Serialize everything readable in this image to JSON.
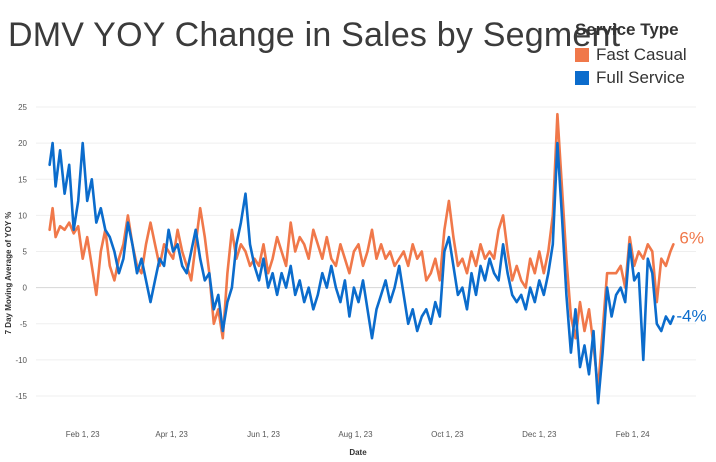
{
  "header": {
    "title": "DMV YOY Change in Sales by Segment"
  },
  "legend": {
    "title": "Service Type",
    "items": [
      {
        "label": "Fast Casual",
        "color": "#f0784a"
      },
      {
        "label": "Full Service",
        "color": "#0b6ccc"
      }
    ]
  },
  "chart_data": {
    "type": "line",
    "title": "DMV YOY Change in Sales by Segment",
    "xlabel": "Date",
    "ylabel": "7 Day Moving Average of YOY %",
    "ylim": [
      -18,
      25
    ],
    "yticks": [
      -15,
      -10,
      -5,
      0,
      5,
      10,
      15,
      20,
      25
    ],
    "xlim": [
      "2023-01-01",
      "2024-03-14"
    ],
    "xticks": [
      {
        "date": "2023-02-01",
        "label": "Feb 1, 23"
      },
      {
        "date": "2023-04-01",
        "label": "Apr 1, 23"
      },
      {
        "date": "2023-06-01",
        "label": "Jun 1, 23"
      },
      {
        "date": "2023-08-01",
        "label": "Aug 1, 23"
      },
      {
        "date": "2023-10-01",
        "label": "Oct 1, 23"
      },
      {
        "date": "2023-12-01",
        "label": "Dec 1, 23"
      },
      {
        "date": "2024-02-01",
        "label": "Feb 1, 24"
      }
    ],
    "grid": "horizontal",
    "legend_position": "top-right",
    "series": [
      {
        "name": "Fast Casual",
        "color": "#f0784a",
        "end_label": "6%",
        "points": [
          [
            "2023-01-10",
            8
          ],
          [
            "2023-01-12",
            11
          ],
          [
            "2023-01-14",
            7
          ],
          [
            "2023-01-17",
            8.5
          ],
          [
            "2023-01-20",
            8
          ],
          [
            "2023-01-23",
            9
          ],
          [
            "2023-01-26",
            7.5
          ],
          [
            "2023-01-29",
            8.5
          ],
          [
            "2023-02-01",
            4
          ],
          [
            "2023-02-04",
            7
          ],
          [
            "2023-02-07",
            3
          ],
          [
            "2023-02-10",
            -1
          ],
          [
            "2023-02-13",
            5
          ],
          [
            "2023-02-16",
            8
          ],
          [
            "2023-02-19",
            3
          ],
          [
            "2023-02-22",
            1
          ],
          [
            "2023-02-25",
            4
          ],
          [
            "2023-02-28",
            6
          ],
          [
            "2023-03-03",
            10
          ],
          [
            "2023-03-06",
            6
          ],
          [
            "2023-03-09",
            3
          ],
          [
            "2023-03-12",
            2
          ],
          [
            "2023-03-15",
            6
          ],
          [
            "2023-03-18",
            9
          ],
          [
            "2023-03-21",
            6
          ],
          [
            "2023-03-24",
            3
          ],
          [
            "2023-03-27",
            6
          ],
          [
            "2023-03-30",
            5
          ],
          [
            "2023-04-02",
            4
          ],
          [
            "2023-04-05",
            8
          ],
          [
            "2023-04-08",
            5
          ],
          [
            "2023-04-11",
            3
          ],
          [
            "2023-04-14",
            1
          ],
          [
            "2023-04-17",
            6
          ],
          [
            "2023-04-20",
            11
          ],
          [
            "2023-04-23",
            7
          ],
          [
            "2023-04-26",
            2
          ],
          [
            "2023-04-29",
            -5
          ],
          [
            "2023-05-02",
            -3
          ],
          [
            "2023-05-05",
            -7
          ],
          [
            "2023-05-08",
            2
          ],
          [
            "2023-05-11",
            8
          ],
          [
            "2023-05-14",
            4
          ],
          [
            "2023-05-17",
            6
          ],
          [
            "2023-05-20",
            5
          ],
          [
            "2023-05-23",
            3
          ],
          [
            "2023-05-26",
            4
          ],
          [
            "2023-05-29",
            3
          ],
          [
            "2023-06-01",
            6
          ],
          [
            "2023-06-04",
            2
          ],
          [
            "2023-06-07",
            4
          ],
          [
            "2023-06-10",
            7
          ],
          [
            "2023-06-13",
            5
          ],
          [
            "2023-06-16",
            3
          ],
          [
            "2023-06-19",
            9
          ],
          [
            "2023-06-22",
            5
          ],
          [
            "2023-06-25",
            7
          ],
          [
            "2023-06-28",
            6
          ],
          [
            "2023-07-01",
            4
          ],
          [
            "2023-07-04",
            8
          ],
          [
            "2023-07-07",
            6
          ],
          [
            "2023-07-10",
            4
          ],
          [
            "2023-07-13",
            7
          ],
          [
            "2023-07-16",
            4
          ],
          [
            "2023-07-19",
            3
          ],
          [
            "2023-07-22",
            6
          ],
          [
            "2023-07-25",
            4
          ],
          [
            "2023-07-28",
            2
          ],
          [
            "2023-07-31",
            5
          ],
          [
            "2023-08-03",
            6
          ],
          [
            "2023-08-06",
            3
          ],
          [
            "2023-08-09",
            5
          ],
          [
            "2023-08-12",
            8
          ],
          [
            "2023-08-15",
            4
          ],
          [
            "2023-08-18",
            6
          ],
          [
            "2023-08-21",
            4
          ],
          [
            "2023-08-24",
            5
          ],
          [
            "2023-08-27",
            3
          ],
          [
            "2023-08-30",
            4
          ],
          [
            "2023-09-02",
            5
          ],
          [
            "2023-09-05",
            3
          ],
          [
            "2023-09-08",
            6
          ],
          [
            "2023-09-11",
            4
          ],
          [
            "2023-09-14",
            5
          ],
          [
            "2023-09-17",
            1
          ],
          [
            "2023-09-20",
            2
          ],
          [
            "2023-09-23",
            4
          ],
          [
            "2023-09-26",
            1
          ],
          [
            "2023-09-29",
            8
          ],
          [
            "2023-10-02",
            12
          ],
          [
            "2023-10-05",
            7
          ],
          [
            "2023-10-08",
            3
          ],
          [
            "2023-10-11",
            4
          ],
          [
            "2023-10-14",
            2
          ],
          [
            "2023-10-17",
            5
          ],
          [
            "2023-10-20",
            3
          ],
          [
            "2023-10-23",
            6
          ],
          [
            "2023-10-26",
            4
          ],
          [
            "2023-10-29",
            5
          ],
          [
            "2023-11-01",
            4
          ],
          [
            "2023-11-04",
            8
          ],
          [
            "2023-11-07",
            10
          ],
          [
            "2023-11-10",
            5
          ],
          [
            "2023-11-13",
            1
          ],
          [
            "2023-11-16",
            3
          ],
          [
            "2023-11-19",
            1
          ],
          [
            "2023-11-22",
            0
          ],
          [
            "2023-11-25",
            4
          ],
          [
            "2023-11-28",
            2
          ],
          [
            "2023-12-01",
            5
          ],
          [
            "2023-12-04",
            2
          ],
          [
            "2023-12-07",
            5
          ],
          [
            "2023-12-10",
            10
          ],
          [
            "2023-12-13",
            24
          ],
          [
            "2023-12-16",
            14
          ],
          [
            "2023-12-19",
            4
          ],
          [
            "2023-12-22",
            -4
          ],
          [
            "2023-12-25",
            -7
          ],
          [
            "2023-12-28",
            -2
          ],
          [
            "2023-12-31",
            -6
          ],
          [
            "2024-01-03",
            -3
          ],
          [
            "2024-01-06",
            -8
          ],
          [
            "2024-01-09",
            -14
          ],
          [
            "2024-01-12",
            -6
          ],
          [
            "2024-01-15",
            2
          ],
          [
            "2024-01-18",
            2
          ],
          [
            "2024-01-21",
            2
          ],
          [
            "2024-01-24",
            3
          ],
          [
            "2024-01-27",
            0
          ],
          [
            "2024-01-30",
            7
          ],
          [
            "2024-02-02",
            3
          ],
          [
            "2024-02-05",
            5
          ],
          [
            "2024-02-08",
            4
          ],
          [
            "2024-02-11",
            6
          ],
          [
            "2024-02-14",
            5
          ],
          [
            "2024-02-17",
            -2
          ],
          [
            "2024-02-20",
            4
          ],
          [
            "2024-02-23",
            3
          ],
          [
            "2024-02-26",
            5
          ],
          [
            "2024-02-28",
            6
          ]
        ]
      },
      {
        "name": "Full Service",
        "color": "#0b6ccc",
        "end_label": "-4%",
        "points": [
          [
            "2023-01-10",
            17
          ],
          [
            "2023-01-12",
            20
          ],
          [
            "2023-01-14",
            14
          ],
          [
            "2023-01-17",
            19
          ],
          [
            "2023-01-20",
            13
          ],
          [
            "2023-01-23",
            17
          ],
          [
            "2023-01-26",
            8
          ],
          [
            "2023-01-29",
            12
          ],
          [
            "2023-02-01",
            20
          ],
          [
            "2023-02-04",
            12
          ],
          [
            "2023-02-07",
            15
          ],
          [
            "2023-02-10",
            9
          ],
          [
            "2023-02-13",
            11
          ],
          [
            "2023-02-16",
            8
          ],
          [
            "2023-02-19",
            7
          ],
          [
            "2023-02-22",
            5
          ],
          [
            "2023-02-25",
            2
          ],
          [
            "2023-02-28",
            4
          ],
          [
            "2023-03-03",
            9
          ],
          [
            "2023-03-06",
            6
          ],
          [
            "2023-03-09",
            2
          ],
          [
            "2023-03-12",
            4
          ],
          [
            "2023-03-15",
            1
          ],
          [
            "2023-03-18",
            -2
          ],
          [
            "2023-03-21",
            1
          ],
          [
            "2023-03-24",
            4
          ],
          [
            "2023-03-27",
            3
          ],
          [
            "2023-03-30",
            8
          ],
          [
            "2023-04-02",
            5
          ],
          [
            "2023-04-05",
            6
          ],
          [
            "2023-04-08",
            3
          ],
          [
            "2023-04-11",
            2
          ],
          [
            "2023-04-14",
            5
          ],
          [
            "2023-04-17",
            8
          ],
          [
            "2023-04-20",
            4
          ],
          [
            "2023-04-23",
            1
          ],
          [
            "2023-04-26",
            2
          ],
          [
            "2023-04-29",
            -3
          ],
          [
            "2023-05-02",
            -1
          ],
          [
            "2023-05-05",
            -6
          ],
          [
            "2023-05-08",
            -2
          ],
          [
            "2023-05-11",
            0
          ],
          [
            "2023-05-14",
            6
          ],
          [
            "2023-05-17",
            9
          ],
          [
            "2023-05-20",
            13
          ],
          [
            "2023-05-23",
            6
          ],
          [
            "2023-05-26",
            3
          ],
          [
            "2023-05-29",
            1
          ],
          [
            "2023-06-01",
            4
          ],
          [
            "2023-06-04",
            0
          ],
          [
            "2023-06-07",
            2
          ],
          [
            "2023-06-10",
            -1
          ],
          [
            "2023-06-13",
            2
          ],
          [
            "2023-06-16",
            0
          ],
          [
            "2023-06-19",
            3
          ],
          [
            "2023-06-22",
            -1
          ],
          [
            "2023-06-25",
            1
          ],
          [
            "2023-06-28",
            -2
          ],
          [
            "2023-07-01",
            0
          ],
          [
            "2023-07-04",
            -3
          ],
          [
            "2023-07-07",
            -1
          ],
          [
            "2023-07-10",
            2
          ],
          [
            "2023-07-13",
            0
          ],
          [
            "2023-07-16",
            3
          ],
          [
            "2023-07-19",
            0
          ],
          [
            "2023-07-22",
            -2
          ],
          [
            "2023-07-25",
            1
          ],
          [
            "2023-07-28",
            -4
          ],
          [
            "2023-07-31",
            0
          ],
          [
            "2023-08-03",
            -2
          ],
          [
            "2023-08-06",
            1
          ],
          [
            "2023-08-09",
            -3
          ],
          [
            "2023-08-12",
            -7
          ],
          [
            "2023-08-15",
            -3
          ],
          [
            "2023-08-18",
            -1
          ],
          [
            "2023-08-21",
            1
          ],
          [
            "2023-08-24",
            -2
          ],
          [
            "2023-08-27",
            0
          ],
          [
            "2023-08-30",
            3
          ],
          [
            "2023-09-02",
            -1
          ],
          [
            "2023-09-05",
            -5
          ],
          [
            "2023-09-08",
            -3
          ],
          [
            "2023-09-11",
            -6
          ],
          [
            "2023-09-14",
            -4
          ],
          [
            "2023-09-17",
            -3
          ],
          [
            "2023-09-20",
            -5
          ],
          [
            "2023-09-23",
            -2
          ],
          [
            "2023-09-26",
            -4
          ],
          [
            "2023-09-29",
            5
          ],
          [
            "2023-10-02",
            7
          ],
          [
            "2023-10-05",
            3
          ],
          [
            "2023-10-08",
            -1
          ],
          [
            "2023-10-11",
            0
          ],
          [
            "2023-10-14",
            -3
          ],
          [
            "2023-10-17",
            2
          ],
          [
            "2023-10-20",
            -1
          ],
          [
            "2023-10-23",
            3
          ],
          [
            "2023-10-26",
            1
          ],
          [
            "2023-10-29",
            4
          ],
          [
            "2023-11-01",
            2
          ],
          [
            "2023-11-04",
            1
          ],
          [
            "2023-11-07",
            6
          ],
          [
            "2023-11-10",
            2
          ],
          [
            "2023-11-13",
            -1
          ],
          [
            "2023-11-16",
            -2
          ],
          [
            "2023-11-19",
            -1
          ],
          [
            "2023-11-22",
            -3
          ],
          [
            "2023-11-25",
            0
          ],
          [
            "2023-11-28",
            -2
          ],
          [
            "2023-12-01",
            1
          ],
          [
            "2023-12-04",
            -1
          ],
          [
            "2023-12-07",
            2
          ],
          [
            "2023-12-10",
            6
          ],
          [
            "2023-12-13",
            20
          ],
          [
            "2023-12-16",
            10
          ],
          [
            "2023-12-19",
            -1
          ],
          [
            "2023-12-22",
            -9
          ],
          [
            "2023-12-25",
            -3
          ],
          [
            "2023-12-28",
            -11
          ],
          [
            "2023-12-31",
            -8
          ],
          [
            "2024-01-03",
            -12
          ],
          [
            "2024-01-06",
            -6
          ],
          [
            "2024-01-09",
            -16
          ],
          [
            "2024-01-12",
            -9
          ],
          [
            "2024-01-15",
            0
          ],
          [
            "2024-01-18",
            -4
          ],
          [
            "2024-01-21",
            -1
          ],
          [
            "2024-01-24",
            0
          ],
          [
            "2024-01-27",
            -2
          ],
          [
            "2024-01-30",
            6
          ],
          [
            "2024-02-02",
            1
          ],
          [
            "2024-02-05",
            2
          ],
          [
            "2024-02-08",
            -10
          ],
          [
            "2024-02-11",
            4
          ],
          [
            "2024-02-14",
            2
          ],
          [
            "2024-02-17",
            -5
          ],
          [
            "2024-02-20",
            -6
          ],
          [
            "2024-02-23",
            -4
          ],
          [
            "2024-02-26",
            -5
          ],
          [
            "2024-02-28",
            -4
          ]
        ]
      }
    ]
  }
}
